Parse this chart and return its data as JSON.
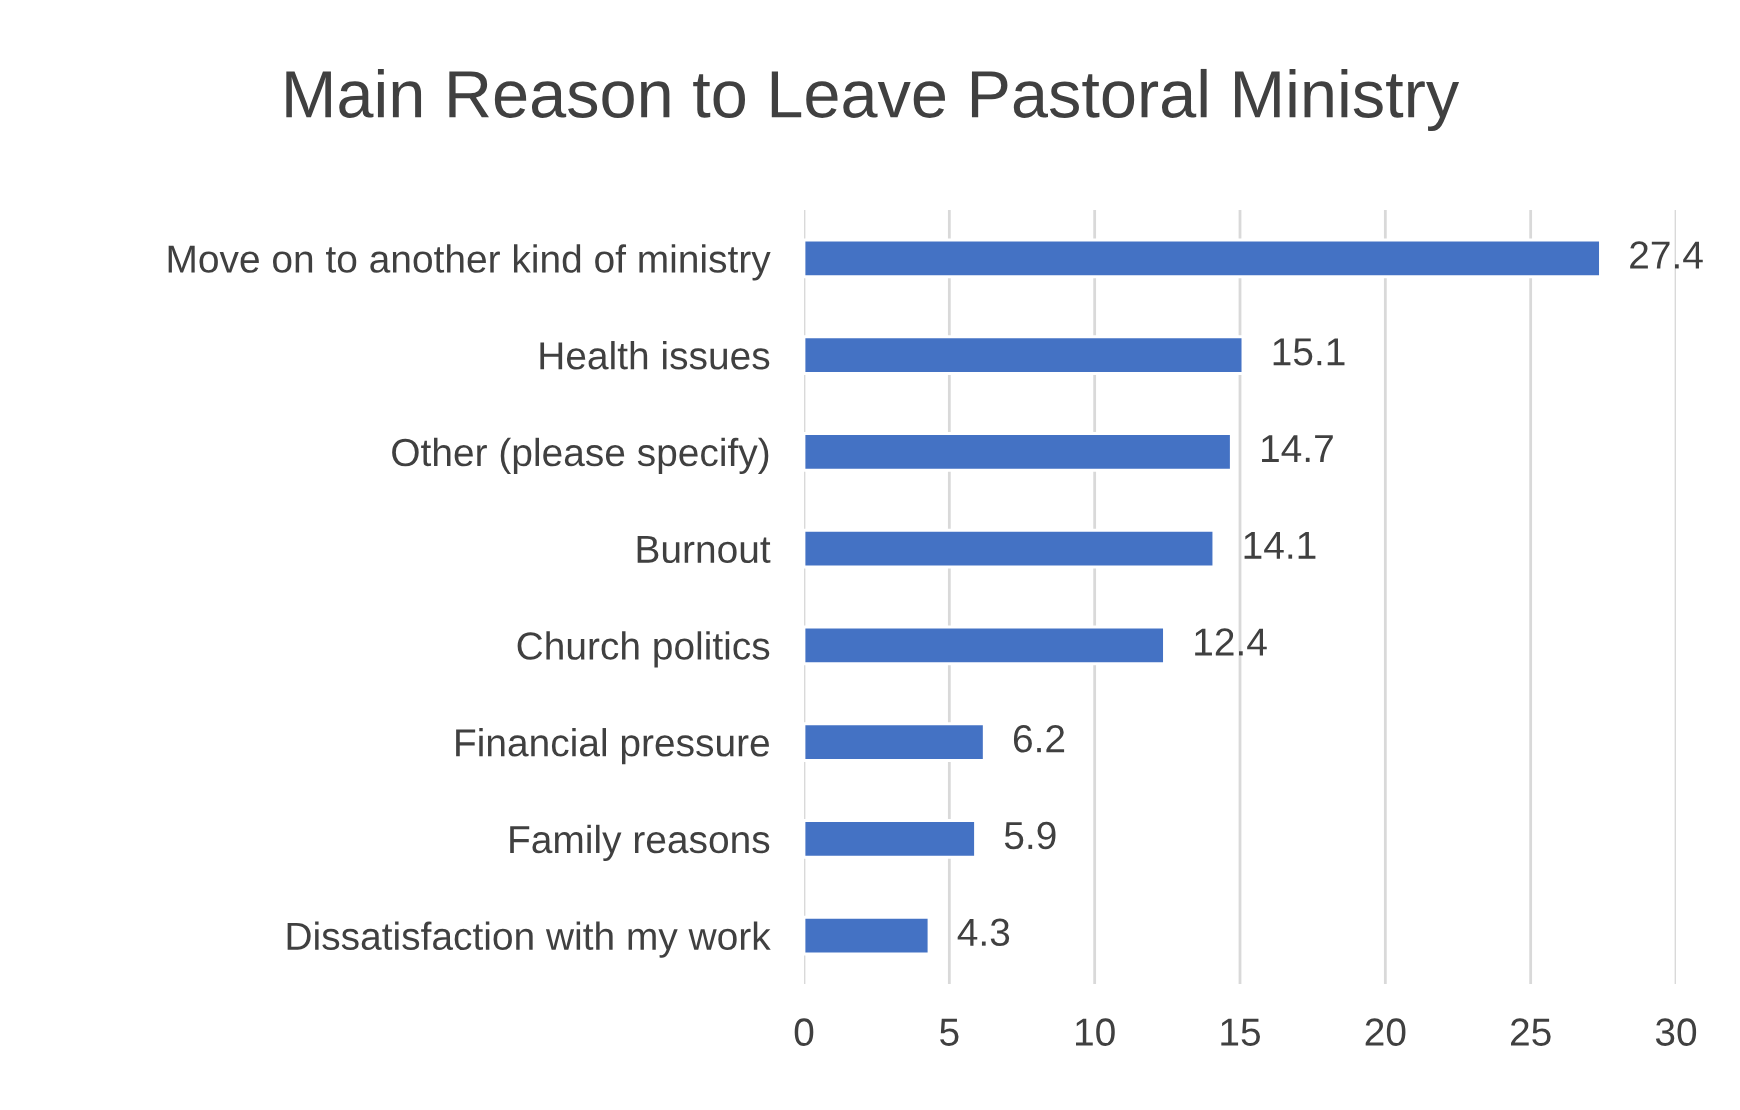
{
  "chart_data": {
    "type": "bar",
    "orientation": "horizontal",
    "title": "Main Reason to Leave Pastoral Ministry",
    "categories": [
      "Move on to another kind of ministry",
      "Health issues",
      "Other (please specify)",
      "Burnout",
      "Church politics",
      "Financial pressure",
      "Family reasons",
      "Dissatisfaction with my work"
    ],
    "values": [
      27.4,
      15.1,
      14.7,
      14.1,
      12.4,
      6.2,
      5.9,
      4.3
    ],
    "color": "#4472c4",
    "data_labels": true,
    "xlim": [
      0,
      30
    ],
    "xticks": [
      0,
      5,
      10,
      15,
      20,
      25,
      30
    ],
    "grid": "x"
  }
}
